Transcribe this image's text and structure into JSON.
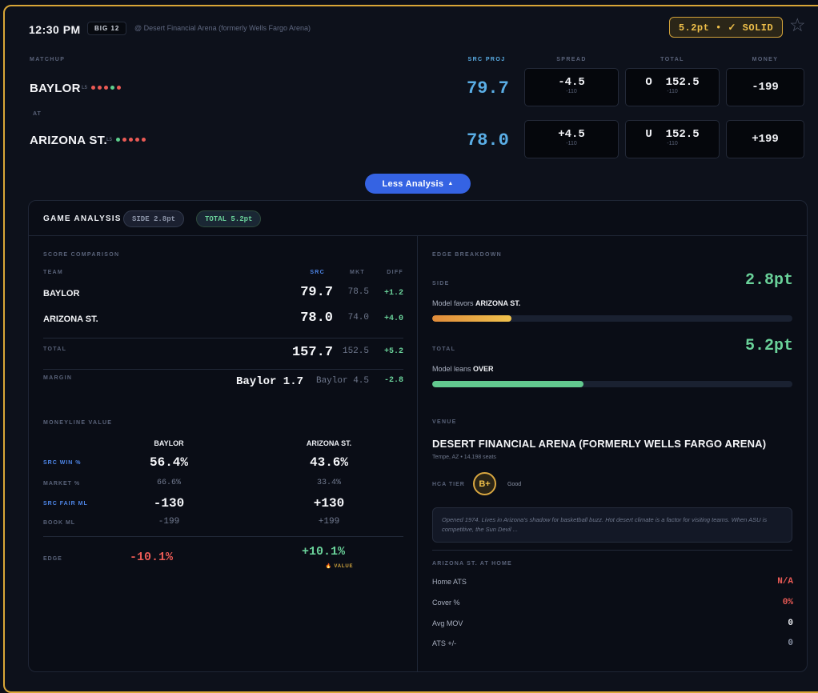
{
  "header": {
    "time": "12:30 PM",
    "conference": "BIG 12",
    "venue_line": "@ Desert Financial Arena (formerly Wells Fargo Arena)",
    "edge_pill": "5.2pt • ✓ SOLID",
    "star_icon": "star-icon"
  },
  "columns": {
    "matchup": "MATCHUP",
    "src_proj": "SRC PROJ",
    "spread": "SPREAD",
    "total": "TOTAL",
    "money": "MONEY"
  },
  "at_label": "AT",
  "l5_label": "L5",
  "colors": {
    "win": "#5fd08e",
    "loss": "#ea5a55",
    "accent": "#3563e3",
    "gold": "#d9a637"
  },
  "teams": [
    {
      "name": "BAYLOR",
      "last5": [
        "L",
        "L",
        "L",
        "W",
        "L"
      ],
      "proj": "79.7",
      "spread": "-4.5",
      "spread_odds": "-110",
      "total": "O  152.5",
      "total_odds": "-110",
      "money": "-199"
    },
    {
      "name": "ARIZONA ST.",
      "last5": [
        "W",
        "L",
        "L",
        "L",
        "L"
      ],
      "proj": "78.0",
      "spread": "+4.5",
      "spread_odds": "-110",
      "total": "U  152.5",
      "total_odds": "-110",
      "money": "+199"
    }
  ],
  "toggle": {
    "label": "Less Analysis",
    "icon": "caret-up-icon"
  },
  "analysis": {
    "title": "GAME ANALYSIS",
    "side_chip": "SIDE 2.8pt",
    "total_chip": "TOTAL 5.2pt",
    "score_comparison": {
      "label": "SCORE COMPARISON",
      "headers": {
        "team": "TEAM",
        "src": "SRC",
        "mkt": "MKT",
        "diff": "DIFF"
      },
      "rows": [
        {
          "team": "BAYLOR",
          "src": "79.7",
          "mkt": "78.5",
          "diff": "+1.2"
        },
        {
          "team": "ARIZONA ST.",
          "src": "78.0",
          "mkt": "74.0",
          "diff": "+4.0"
        }
      ],
      "total": {
        "label": "TOTAL",
        "src": "157.7",
        "mkt": "152.5",
        "diff": "+5.2"
      },
      "margin": {
        "label": "MARGIN",
        "src": "Baylor 1.7",
        "mkt": "Baylor 4.5",
        "diff": "-2.8"
      }
    },
    "moneyline": {
      "label": "MONEYLINE VALUE",
      "team_a": "BAYLOR",
      "team_b": "ARIZONA ST.",
      "rows": [
        {
          "label": "SRC WIN %",
          "a": "56.4%",
          "b": "43.6%"
        },
        {
          "label": "MARKET %",
          "a": "66.6%",
          "b": "33.4%"
        },
        {
          "label": "SRC FAIR ML",
          "a": "-130",
          "b": "+130"
        },
        {
          "label": "BOOK ML",
          "a": "-199",
          "b": "+199"
        }
      ],
      "edge": {
        "label": "EDGE",
        "a": "-10.1%",
        "b": "+10.1%",
        "tag": "VALUE",
        "tag_icon": "fire-icon"
      }
    },
    "edge_breakdown": {
      "label": "EDGE BREAKDOWN",
      "side": {
        "label": "SIDE",
        "value": "2.8pt",
        "text_prefix": "Model favors",
        "text_team": "ARIZONA ST.",
        "fill_fraction": 0.22
      },
      "total": {
        "label": "TOTAL",
        "value": "5.2pt",
        "text_prefix": "Model leans",
        "text_team": "OVER",
        "fill_fraction": 0.42
      }
    },
    "venue": {
      "label": "VENUE",
      "name": "DESERT FINANCIAL ARENA (FORMERLY WELLS FARGO ARENA)",
      "meta": "Tempe, AZ • 14,198 seats",
      "hca_label": "HCA TIER",
      "grade": "B+",
      "grade_word": "Good",
      "note": "Opened 1974. Lives in Arizona's shadow for basketball buzz. Hot desert climate is a factor for visiting teams. When ASU is competitive, the Sun Devil ..."
    },
    "home": {
      "label": "ARIZONA ST. AT HOME",
      "stats": [
        {
          "key": "Home ATS",
          "value": "N/A"
        },
        {
          "key": "Cover %",
          "value": "0%"
        },
        {
          "key": "Avg MOV",
          "value": "0"
        },
        {
          "key": "ATS +/-",
          "value": "0"
        }
      ]
    }
  }
}
